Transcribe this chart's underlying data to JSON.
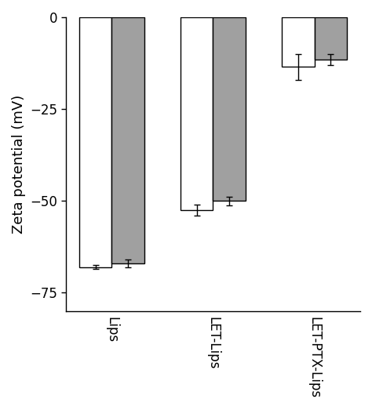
{
  "categories": [
    "Lips",
    "LET-Lips",
    "LET-PTX-Lips"
  ],
  "white_values": [
    68.0,
    52.5,
    13.5
  ],
  "gray_values": [
    67.0,
    50.0,
    11.5
  ],
  "white_errors": [
    0.5,
    1.5,
    3.5
  ],
  "gray_errors": [
    1.0,
    1.2,
    1.5
  ],
  "bar_width": 0.32,
  "white_color": "#ffffff",
  "gray_color": "#a0a0a0",
  "edge_color": "#000000",
  "ylabel": "Zeta potential (mV)",
  "ylim": [
    0,
    80
  ],
  "yticks": [
    0,
    25,
    50,
    75
  ],
  "ytick_labels": [
    "0",
    "−25",
    "−50",
    "−75"
  ],
  "background_color": "#ffffff",
  "tick_label_fontsize": 12,
  "ylabel_fontsize": 13,
  "linewidth": 1.0
}
